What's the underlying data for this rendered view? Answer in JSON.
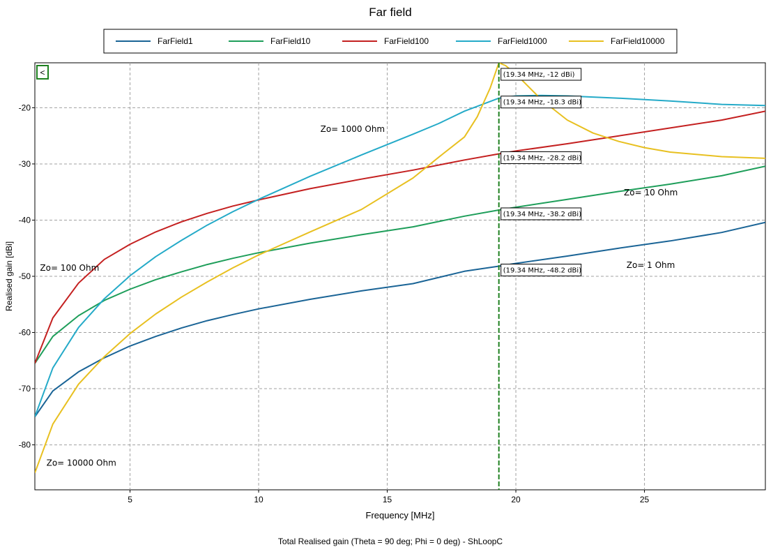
{
  "chart_data": {
    "type": "line",
    "title": "Far field",
    "xlabel": "Frequency [MHz]",
    "ylabel": "Realised gain [dBi]",
    "footer": "Total Realised gain (Theta = 90 deg; Phi = 0 deg) - ShLoopC",
    "xlim": [
      1.3,
      29.7
    ],
    "ylim": [
      -88,
      -12
    ],
    "xticks": [
      5,
      10,
      15,
      20,
      25
    ],
    "yticks": [
      -80,
      -70,
      -60,
      -50,
      -40,
      -30,
      -20
    ],
    "grid": true,
    "legend_position": "top",
    "collapse_button": "<",
    "series": [
      {
        "name": "FarField1",
        "color": "#1a6496",
        "x": [
          1.3,
          2,
          3,
          4,
          5,
          6,
          7,
          8,
          9,
          10,
          12,
          14,
          16,
          18,
          19.34,
          20,
          22,
          24,
          26,
          28,
          29.7
        ],
        "y": [
          -75,
          -70.4,
          -67,
          -64.5,
          -62.4,
          -60.7,
          -59.2,
          -57.9,
          -56.8,
          -55.8,
          -54.1,
          -52.6,
          -51.3,
          -49.1,
          -48.2,
          -47.7,
          -46.4,
          -45,
          -43.7,
          -42.2,
          -40.4
        ]
      },
      {
        "name": "FarField10",
        "color": "#1e9e5a",
        "x": [
          1.3,
          2,
          3,
          4,
          5,
          6,
          7,
          8,
          9,
          10,
          12,
          14,
          16,
          18,
          19.34,
          20,
          22,
          24,
          26,
          28,
          29.7
        ],
        "y": [
          -65.5,
          -60.7,
          -57,
          -54.3,
          -52.3,
          -50.6,
          -49.2,
          -47.9,
          -46.8,
          -45.8,
          -44.1,
          -42.6,
          -41.2,
          -39.3,
          -38.2,
          -37.7,
          -36.3,
          -34.9,
          -33.6,
          -32.1,
          -30.4
        ]
      },
      {
        "name": "FarField100",
        "color": "#c42020",
        "x": [
          1.3,
          2,
          3,
          4,
          5,
          6,
          7,
          8,
          9,
          10,
          12,
          14,
          16,
          18,
          19.34,
          20,
          22,
          24,
          26,
          28,
          29.7
        ],
        "y": [
          -65.5,
          -57.4,
          -51.2,
          -47,
          -44.3,
          -42.1,
          -40.3,
          -38.8,
          -37.5,
          -36.4,
          -34.4,
          -32.7,
          -31.1,
          -29.3,
          -28.2,
          -27.7,
          -26.4,
          -25,
          -23.6,
          -22.2,
          -20.6
        ]
      },
      {
        "name": "FarField1000",
        "color": "#24aac8",
        "x": [
          1.3,
          2,
          3,
          4,
          5,
          6,
          7,
          8,
          9,
          10,
          12,
          14,
          16,
          17,
          18,
          19.34,
          20,
          21,
          22,
          24,
          26,
          28,
          29.7
        ],
        "y": [
          -75,
          -66.3,
          -59.1,
          -54,
          -49.9,
          -46.5,
          -43.6,
          -40.9,
          -38.5,
          -36.3,
          -32.2,
          -28.4,
          -24.7,
          -22.8,
          -20.6,
          -18.3,
          -17.9,
          -17.8,
          -17.9,
          -18.3,
          -18.8,
          -19.4,
          -19.6
        ]
      },
      {
        "name": "FarField10000",
        "color": "#e8c020",
        "x": [
          1.3,
          2,
          3,
          4,
          5,
          6,
          7,
          8,
          9,
          10,
          12,
          14,
          16,
          17,
          18,
          18.5,
          19,
          19.34,
          19.6,
          20,
          21,
          22,
          23,
          24,
          25,
          26,
          28,
          29.7
        ],
        "y": [
          -85,
          -76.3,
          -69.2,
          -64.3,
          -60.2,
          -56.7,
          -53.7,
          -51,
          -48.5,
          -46.2,
          -42.1,
          -38.1,
          -32.5,
          -28.8,
          -25.2,
          -21.6,
          -16.5,
          -12,
          -12.5,
          -14,
          -18.6,
          -22.2,
          -24.5,
          -26,
          -27.1,
          -27.9,
          -28.7,
          -29
        ]
      }
    ],
    "marker": {
      "x": 19.34,
      "color": "#1e8020",
      "labels": [
        "(19.34 MHz, -12 dBi)",
        "(19.34 MHz, -18.3 dBi)",
        "(19.34 MHz, -28.2 dBi)",
        "(19.34 MHz, -38.2 dBi)",
        "(19.34 MHz, -48.2 dBi)"
      ],
      "values": [
        -12,
        -18.3,
        -28.2,
        -38.2,
        -48.2
      ]
    },
    "annotations": [
      {
        "text": "Zo= 1000 Ohm",
        "x": 12.4,
        "y": -24.3
      },
      {
        "text": "Zo= 10 Ohm",
        "x": 24.2,
        "y": -35.6
      },
      {
        "text": "Zo= 1 Ohm",
        "x": 24.3,
        "y": -48.5
      },
      {
        "text": "Zo= 100 Ohm",
        "x": 1.5,
        "y": -49
      },
      {
        "text": "Zo= 10000 Ohm",
        "x": 1.75,
        "y": -83.7
      }
    ]
  }
}
